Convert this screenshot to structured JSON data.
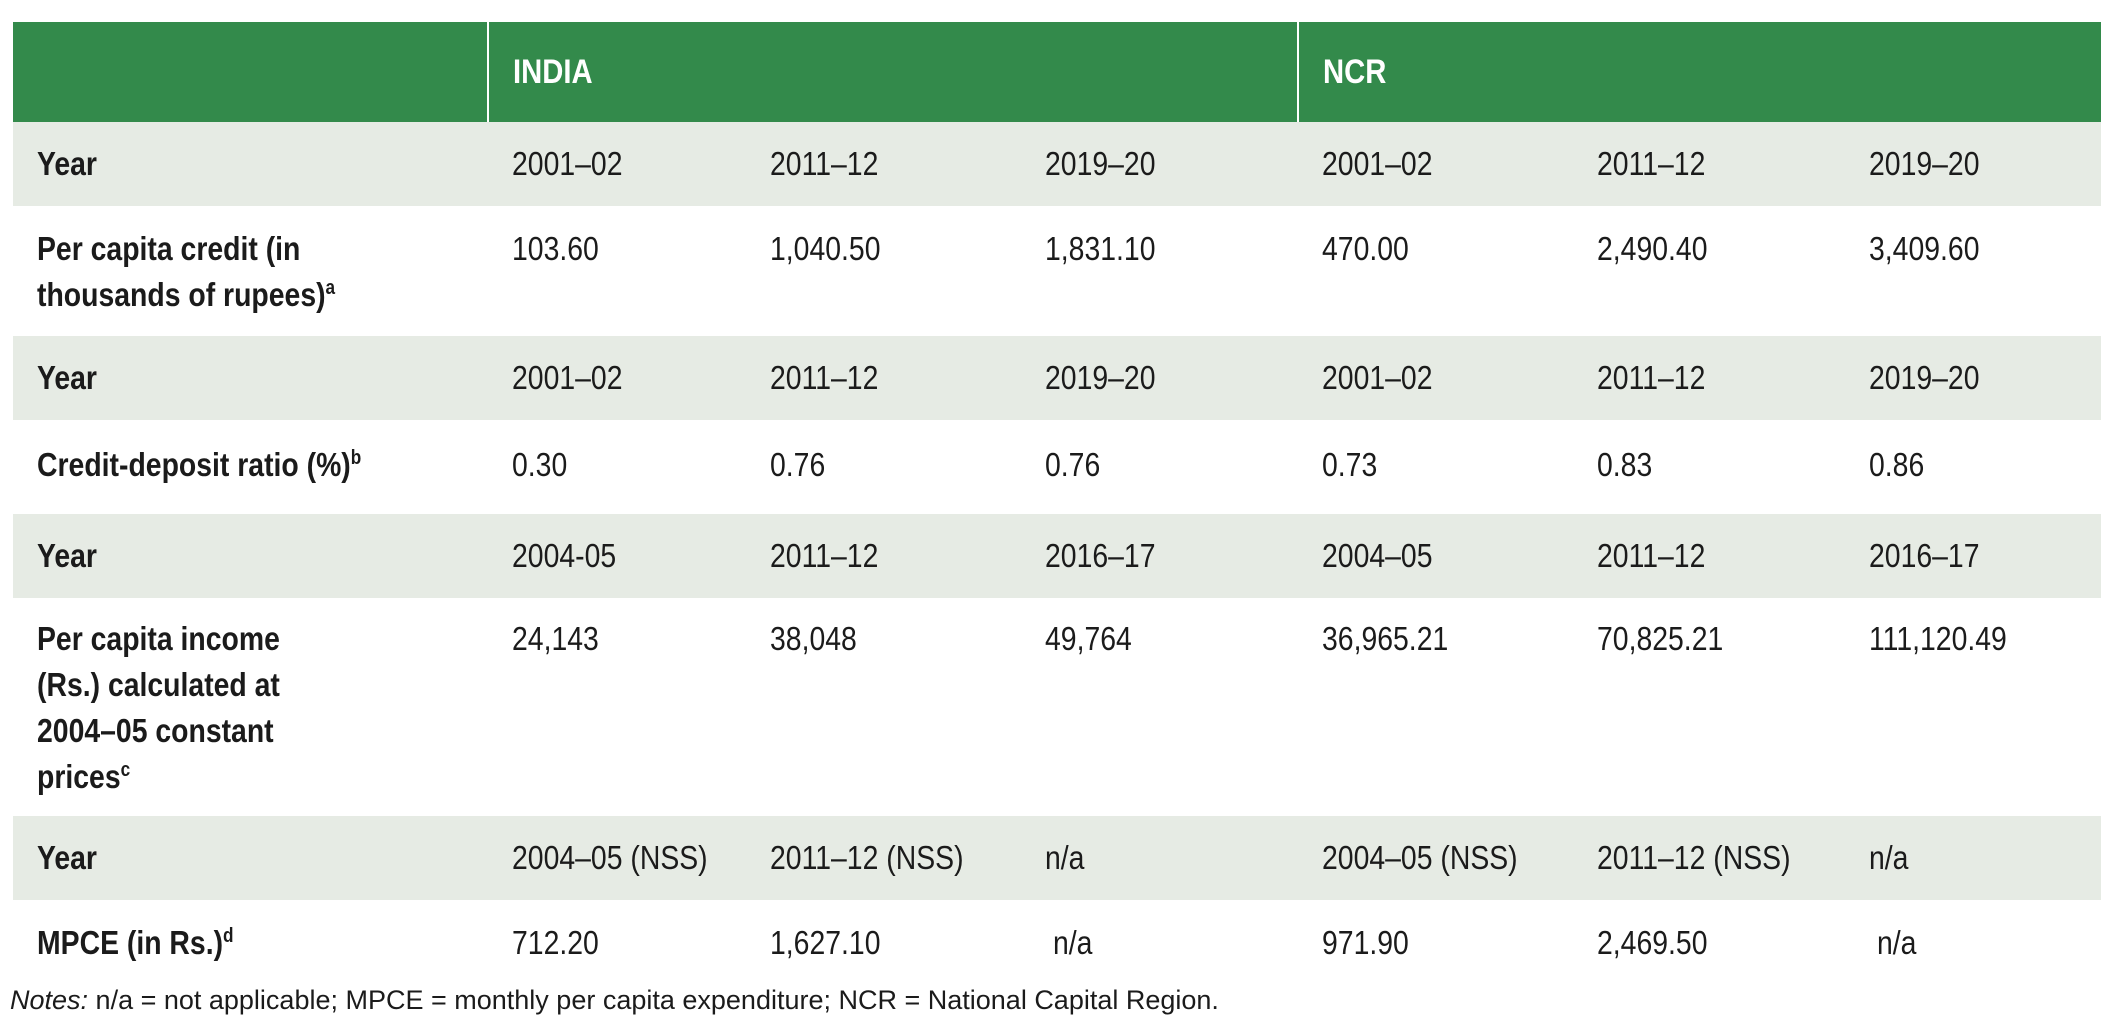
{
  "header": {
    "group_india": "INDIA",
    "group_ncr": "NCR"
  },
  "rows": [
    {
      "type": "year",
      "label": "Year",
      "india": [
        "2001–02",
        "2011–12",
        "2019–20"
      ],
      "ncr": [
        "2001–02",
        "2011–12",
        "2019–20"
      ]
    },
    {
      "type": "data",
      "label": "Per capita credit (in thousands of rupees)",
      "note_mark": "a",
      "india": [
        "103.60",
        "1,040.50",
        "1,831.10"
      ],
      "ncr": [
        "470.00",
        "2,490.40",
        "3,409.60"
      ]
    },
    {
      "type": "year",
      "label": "Year",
      "india": [
        "2001–02",
        "2011–12",
        "2019–20"
      ],
      "ncr": [
        "2001–02",
        "2011–12",
        "2019–20"
      ]
    },
    {
      "type": "data",
      "label": "Credit-deposit ratio (%)",
      "note_mark": "b",
      "india": [
        "0.30",
        "0.76",
        "0.76"
      ],
      "ncr": [
        "0.73",
        "0.83",
        "0.86"
      ]
    },
    {
      "type": "year",
      "label": "Year",
      "india": [
        "2004-05",
        "2011–12",
        "2016–17"
      ],
      "ncr": [
        "2004–05",
        "2011–12",
        "2016–17"
      ]
    },
    {
      "type": "data",
      "label": "Per capita income (Rs.) calculated at 2004–05 constant prices",
      "note_mark": "c",
      "india": [
        "24,143",
        "38,048",
        "49,764"
      ],
      "ncr": [
        "36,965.21",
        "70,825.21",
        "111,120.49"
      ]
    },
    {
      "type": "year",
      "label": "Year",
      "india": [
        "2004–05 (NSS)",
        "2011–12 (NSS)",
        "n/a"
      ],
      "ncr": [
        "2004–05 (NSS)",
        "2011–12 (NSS)",
        "n/a"
      ]
    },
    {
      "type": "data",
      "label": "MPCE (in Rs.)",
      "note_mark": "d",
      "india": [
        "712.20",
        "1,627.10",
        "n/a"
      ],
      "ncr": [
        "971.90",
        "2,469.50",
        "n/a"
      ]
    }
  ],
  "notes": {
    "prefix": "Notes:",
    "text": " n/a = not applicable; MPCE = monthly per capita expenditure; NCR = National Capital Region."
  }
}
